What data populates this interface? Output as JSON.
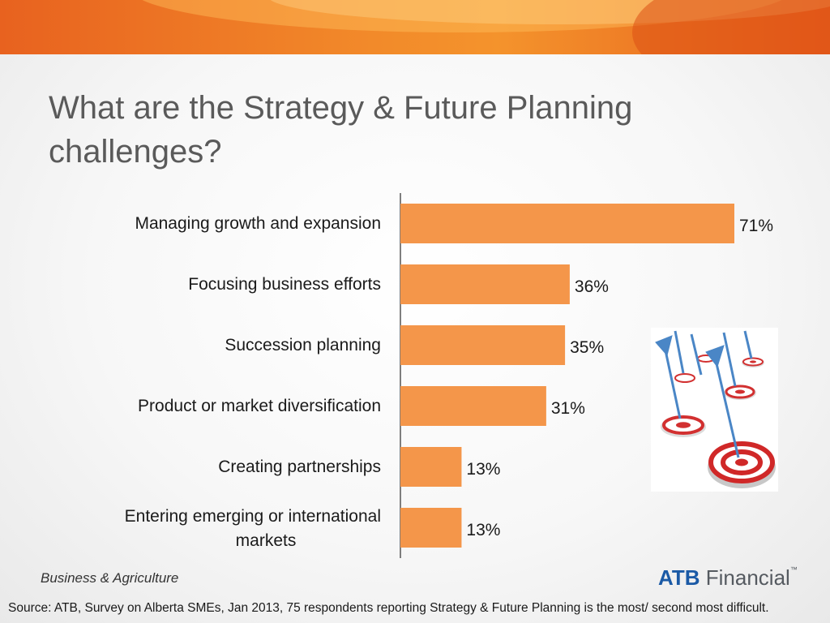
{
  "title": "What are the Strategy & Future Planning challenges?",
  "chart_data": {
    "type": "bar",
    "orientation": "horizontal",
    "categories": [
      "Managing growth and expansion",
      "Focusing business efforts",
      "Succession planning",
      "Product or market diversification",
      "Creating partnerships",
      "Entering emerging or international markets"
    ],
    "values": [
      71,
      36,
      35,
      31,
      13,
      13
    ],
    "value_labels": [
      "71%",
      "36%",
      "35%",
      "31%",
      "13%",
      "13%"
    ],
    "value_unit": "%",
    "xlim": [
      0,
      100
    ],
    "grid": false,
    "bar_color": "#f4964a"
  },
  "footer": {
    "section": "Business & Agriculture",
    "brand_bold": "ATB",
    "brand_rest": "Financial",
    "brand_mark": "™",
    "source": "Source: ATB, Survey on Alberta SMEs, Jan 2013, 75 respondents reporting Strategy & Future Planning is the most/ second most difficult."
  },
  "colors": {
    "banner": "#f28a2a",
    "bar": "#f4964a",
    "brand_blue": "#1b5aa6",
    "title_gray": "#5a5a5a"
  },
  "image": {
    "icon": "darts-target-icon"
  }
}
